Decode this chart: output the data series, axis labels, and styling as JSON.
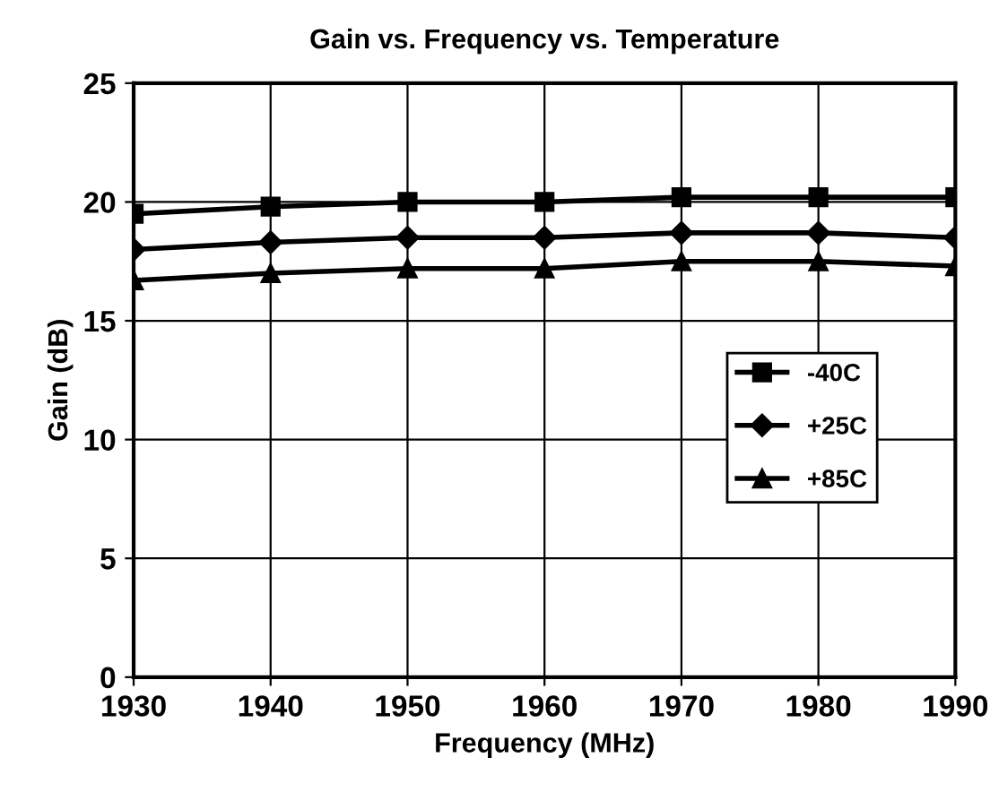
{
  "chart_data": {
    "type": "line",
    "title": "Gain vs. Frequency vs. Temperature",
    "xlabel": "Frequency (MHz)",
    "ylabel": "Gain (dB)",
    "x": [
      1930,
      1940,
      1950,
      1960,
      1970,
      1980,
      1990
    ],
    "series": [
      {
        "name": "-40C",
        "color": "#000000",
        "marker": "square",
        "values": [
          19.5,
          19.8,
          20.0,
          20.0,
          20.2,
          20.2,
          20.2
        ]
      },
      {
        "name": "+25C",
        "color": "#000000",
        "marker": "diamond",
        "values": [
          18.0,
          18.3,
          18.5,
          18.5,
          18.7,
          18.7,
          18.5
        ]
      },
      {
        "name": "+85C",
        "color": "#000000",
        "marker": "triangle",
        "values": [
          16.7,
          17.0,
          17.2,
          17.2,
          17.5,
          17.5,
          17.3
        ]
      }
    ],
    "xlim": [
      1930,
      1990
    ],
    "xticks": [
      1930,
      1940,
      1950,
      1960,
      1970,
      1980,
      1990
    ],
    "ylim": [
      0,
      25
    ],
    "yticks": [
      0,
      5,
      10,
      15,
      20,
      25
    ],
    "grid": true,
    "legend": "right",
    "line_style": "solid"
  }
}
